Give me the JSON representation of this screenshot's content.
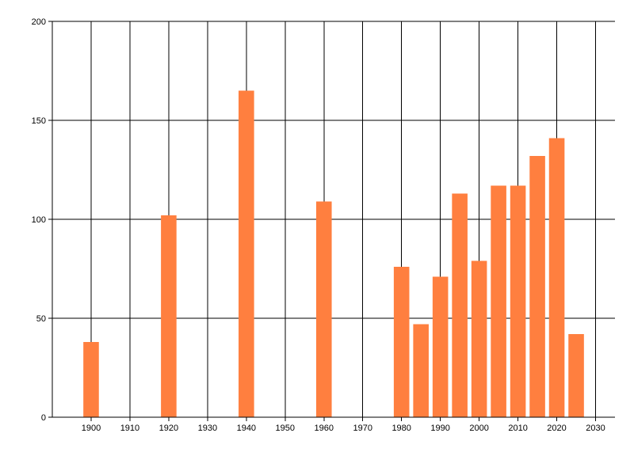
{
  "chart_data": {
    "type": "bar",
    "title": "",
    "xlabel": "",
    "ylabel": "",
    "bar_color": "#FF7F3F",
    "grid_color": "#000000",
    "grid": true,
    "xlim": [
      1890,
      2035
    ],
    "ylim": [
      0,
      200
    ],
    "x_ticks": [
      1900,
      1910,
      1920,
      1930,
      1940,
      1950,
      1960,
      1970,
      1980,
      1990,
      2000,
      2010,
      2020,
      2030
    ],
    "y_ticks": [
      0,
      50,
      100,
      150,
      200
    ],
    "x": [
      1900,
      1920,
      1940,
      1960,
      1980,
      1985,
      1990,
      1995,
      2000,
      2005,
      2010,
      2015,
      2020,
      2025
    ],
    "values": [
      38,
      102,
      165,
      109,
      76,
      47,
      71,
      113,
      79,
      117,
      117,
      132,
      141,
      42
    ]
  }
}
